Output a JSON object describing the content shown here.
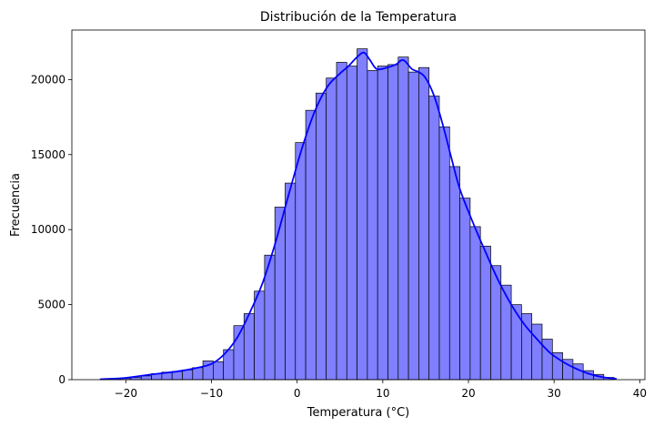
{
  "chart_data": {
    "type": "bar",
    "title": "Distribución de la Temperatura",
    "xlabel": "Temperatura (°C)",
    "ylabel": "Frecuencia",
    "xlim": [
      -26.3,
      40.6
    ],
    "ylim": [
      0,
      23300
    ],
    "x_ticks": [
      -20,
      -10,
      0,
      10,
      20,
      30,
      40
    ],
    "y_ticks": [
      0,
      5000,
      10000,
      15000,
      20000
    ],
    "grid": false,
    "legend": "none",
    "bar_color": "#7f7fff",
    "edge_color": "#000000",
    "kde_color": "#0000ff",
    "bins": [
      {
        "x0": -23.0,
        "x1": -21.8,
        "count": 30
      },
      {
        "x0": -21.8,
        "x1": -20.6,
        "count": 60
      },
      {
        "x0": -20.6,
        "x1": -19.4,
        "count": 100
      },
      {
        "x0": -19.4,
        "x1": -18.2,
        "count": 150
      },
      {
        "x0": -18.2,
        "x1": -17.0,
        "count": 250
      },
      {
        "x0": -17.0,
        "x1": -15.8,
        "count": 400
      },
      {
        "x0": -15.8,
        "x1": -14.6,
        "count": 500
      },
      {
        "x0": -14.6,
        "x1": -13.4,
        "count": 550
      },
      {
        "x0": -13.4,
        "x1": -12.2,
        "count": 650
      },
      {
        "x0": -12.2,
        "x1": -11.0,
        "count": 800
      },
      {
        "x0": -11.0,
        "x1": -9.8,
        "count": 1250
      },
      {
        "x0": -9.8,
        "x1": -8.6,
        "count": 1200
      },
      {
        "x0": -8.6,
        "x1": -7.4,
        "count": 2000
      },
      {
        "x0": -7.4,
        "x1": -6.2,
        "count": 3600
      },
      {
        "x0": -6.2,
        "x1": -5.0,
        "count": 4400
      },
      {
        "x0": -5.0,
        "x1": -3.8,
        "count": 5900
      },
      {
        "x0": -3.8,
        "x1": -2.6,
        "count": 8300
      },
      {
        "x0": -2.6,
        "x1": -1.4,
        "count": 11500
      },
      {
        "x0": -1.4,
        "x1": -0.2,
        "count": 13100
      },
      {
        "x0": -0.2,
        "x1": 1.0,
        "count": 15800
      },
      {
        "x0": 1.0,
        "x1": 2.2,
        "count": 17950
      },
      {
        "x0": 2.2,
        "x1": 3.4,
        "count": 19100
      },
      {
        "x0": 3.4,
        "x1": 4.6,
        "count": 20100
      },
      {
        "x0": 4.6,
        "x1": 5.8,
        "count": 21150
      },
      {
        "x0": 5.8,
        "x1": 7.0,
        "count": 20900
      },
      {
        "x0": 7.0,
        "x1": 8.2,
        "count": 22050
      },
      {
        "x0": 8.2,
        "x1": 9.4,
        "count": 20600
      },
      {
        "x0": 9.4,
        "x1": 10.6,
        "count": 20900
      },
      {
        "x0": 10.6,
        "x1": 11.8,
        "count": 21000
      },
      {
        "x0": 11.8,
        "x1": 13.0,
        "count": 21500
      },
      {
        "x0": 13.0,
        "x1": 14.2,
        "count": 20500
      },
      {
        "x0": 14.2,
        "x1": 15.4,
        "count": 20800
      },
      {
        "x0": 15.4,
        "x1": 16.6,
        "count": 18900
      },
      {
        "x0": 16.6,
        "x1": 17.8,
        "count": 16850
      },
      {
        "x0": 17.8,
        "x1": 19.0,
        "count": 14200
      },
      {
        "x0": 19.0,
        "x1": 20.2,
        "count": 12100
      },
      {
        "x0": 20.2,
        "x1": 21.4,
        "count": 10200
      },
      {
        "x0": 21.4,
        "x1": 22.6,
        "count": 8900
      },
      {
        "x0": 22.6,
        "x1": 23.8,
        "count": 7600
      },
      {
        "x0": 23.8,
        "x1": 25.0,
        "count": 6300
      },
      {
        "x0": 25.0,
        "x1": 26.2,
        "count": 5000
      },
      {
        "x0": 26.2,
        "x1": 27.4,
        "count": 4400
      },
      {
        "x0": 27.4,
        "x1": 28.6,
        "count": 3700
      },
      {
        "x0": 28.6,
        "x1": 29.8,
        "count": 2700
      },
      {
        "x0": 29.8,
        "x1": 31.0,
        "count": 1800
      },
      {
        "x0": 31.0,
        "x1": 32.2,
        "count": 1350
      },
      {
        "x0": 32.2,
        "x1": 33.4,
        "count": 1050
      },
      {
        "x0": 33.4,
        "x1": 34.6,
        "count": 600
      },
      {
        "x0": 34.6,
        "x1": 35.8,
        "count": 350
      },
      {
        "x0": 35.8,
        "x1": 37.0,
        "count": 150
      }
    ],
    "kde": [
      {
        "x": -23.0,
        "y": 30
      },
      {
        "x": -20.0,
        "y": 120
      },
      {
        "x": -17.0,
        "y": 350
      },
      {
        "x": -14.0,
        "y": 550
      },
      {
        "x": -12.0,
        "y": 750
      },
      {
        "x": -10.0,
        "y": 1050
      },
      {
        "x": -8.5,
        "y": 1700
      },
      {
        "x": -7.0,
        "y": 2800
      },
      {
        "x": -5.5,
        "y": 4500
      },
      {
        "x": -4.0,
        "y": 6500
      },
      {
        "x": -2.5,
        "y": 9200
      },
      {
        "x": -1.0,
        "y": 12300
      },
      {
        "x": 0.5,
        "y": 15300
      },
      {
        "x": 2.0,
        "y": 17800
      },
      {
        "x": 3.5,
        "y": 19500
      },
      {
        "x": 5.0,
        "y": 20400
      },
      {
        "x": 6.0,
        "y": 20900
      },
      {
        "x": 7.0,
        "y": 21500
      },
      {
        "x": 7.8,
        "y": 21800
      },
      {
        "x": 8.5,
        "y": 21300
      },
      {
        "x": 9.3,
        "y": 20700
      },
      {
        "x": 10.5,
        "y": 20800
      },
      {
        "x": 11.5,
        "y": 21000
      },
      {
        "x": 12.4,
        "y": 21300
      },
      {
        "x": 13.4,
        "y": 20700
      },
      {
        "x": 14.2,
        "y": 20500
      },
      {
        "x": 15.0,
        "y": 20100
      },
      {
        "x": 16.0,
        "y": 18900
      },
      {
        "x": 17.0,
        "y": 17000
      },
      {
        "x": 18.0,
        "y": 14800
      },
      {
        "x": 19.0,
        "y": 12700
      },
      {
        "x": 20.5,
        "y": 10500
      },
      {
        "x": 22.0,
        "y": 8500
      },
      {
        "x": 23.5,
        "y": 6600
      },
      {
        "x": 25.0,
        "y": 5000
      },
      {
        "x": 26.5,
        "y": 3700
      },
      {
        "x": 28.0,
        "y": 2700
      },
      {
        "x": 29.5,
        "y": 1800
      },
      {
        "x": 31.0,
        "y": 1200
      },
      {
        "x": 32.5,
        "y": 750
      },
      {
        "x": 34.0,
        "y": 400
      },
      {
        "x": 35.5,
        "y": 180
      },
      {
        "x": 37.3,
        "y": 50
      }
    ]
  }
}
